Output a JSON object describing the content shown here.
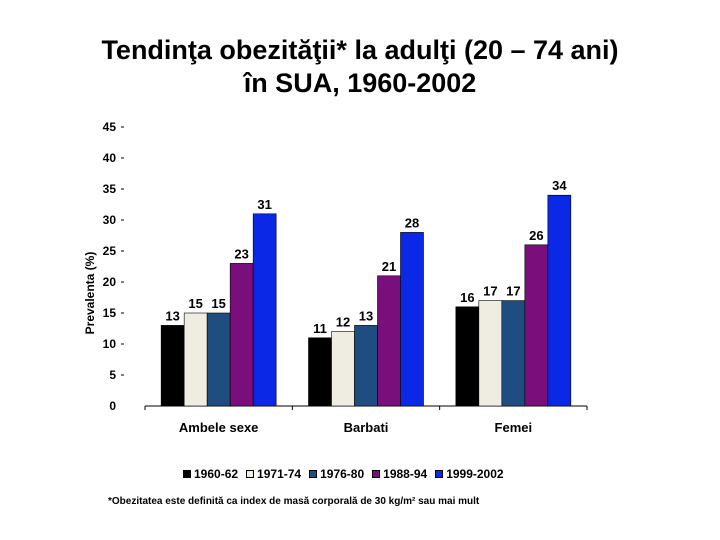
{
  "slide": {
    "title_line1": "Tendinţa obezităţii* la adulţi (20 – 74 ani)",
    "title_line2": "în SUA, 1960-2002",
    "footnote": "*Obezitatea este definită ca index de masă corporală de 30 kg/m² sau mai mult"
  },
  "chart_data": {
    "type": "bar",
    "title": "",
    "xlabel": "",
    "ylabel": "Prevalenta (%)",
    "ylim": [
      0,
      45
    ],
    "yticks": [
      "0",
      "5",
      "10",
      "15",
      "20",
      "25",
      "30",
      "35",
      "40",
      "45"
    ],
    "categories": [
      "Ambele sexe",
      "Barbati",
      "Femei"
    ],
    "series": [
      {
        "name": "1960-62",
        "color": "#000000",
        "values": [
          13,
          11,
          16
        ]
      },
      {
        "name": "1971-74",
        "color": "#efece1",
        "values": [
          15,
          12,
          17
        ]
      },
      {
        "name": "1976-80",
        "color": "#1f4d80",
        "values": [
          15,
          13,
          17
        ]
      },
      {
        "name": "1988-94",
        "color": "#7a0e7a",
        "values": [
          23,
          21,
          26
        ]
      },
      {
        "name": "1999-2002",
        "color": "#0a28e6",
        "values": [
          31,
          28,
          34
        ]
      }
    ],
    "legend_position": "bottom",
    "grid": false
  }
}
